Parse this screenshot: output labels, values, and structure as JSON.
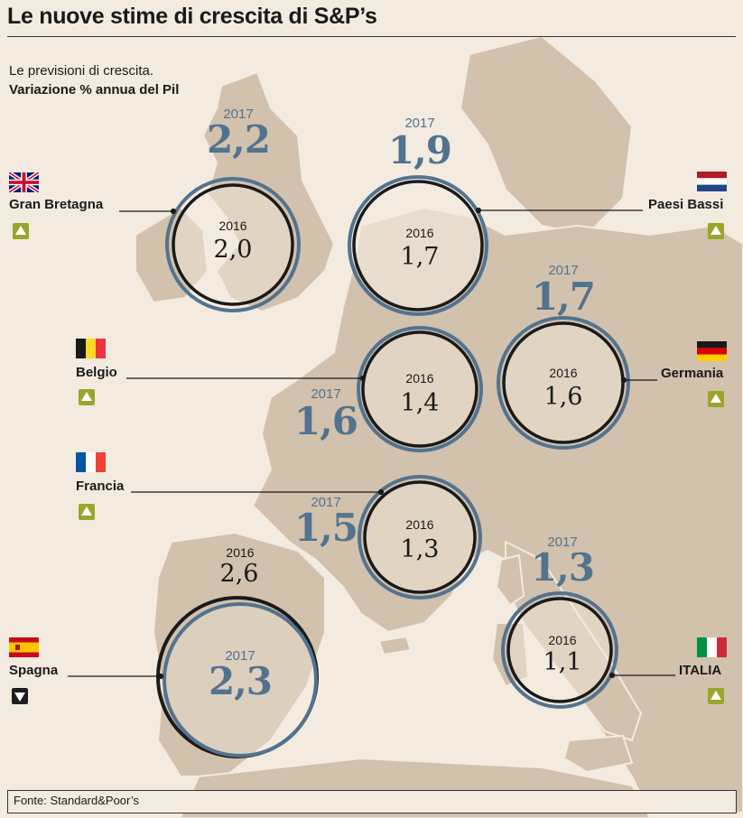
{
  "title": "Le nuove stime di crescita di S&P’s",
  "subtitle_line1": "Le previsioni di crescita.",
  "subtitle_line2": "Variazione % annua del Pil",
  "source": "Fonte: Standard&Poor’s",
  "year_new": "2017",
  "year_old": "2016",
  "colors": {
    "map_land": "#d2c1ac",
    "sea": "#f3ebe0",
    "forecast_2017": "#52738f",
    "forecast_2016": "#1a1a1a",
    "up_badge": "#9aa52c",
    "down_badge": "#1d1d1d"
  },
  "countries": [
    {
      "name": "Gran Bretagna",
      "v2016": "2,0",
      "v2017": "2,2",
      "trend": "up",
      "flag": "uk"
    },
    {
      "name": "Paesi Bassi",
      "v2016": "1,7",
      "v2017": "1,9",
      "trend": "up",
      "flag": "nl"
    },
    {
      "name": "Belgio",
      "v2016": "1,4",
      "v2017": "1,6",
      "trend": "up",
      "flag": "be"
    },
    {
      "name": "Germania",
      "v2016": "1,6",
      "v2017": "1,7",
      "trend": "up",
      "flag": "de"
    },
    {
      "name": "Francia",
      "v2016": "1,3",
      "v2017": "1,5",
      "trend": "up",
      "flag": "fr"
    },
    {
      "name": "Spagna",
      "v2016": "2,6",
      "v2017": "2,3",
      "trend": "down",
      "flag": "es"
    },
    {
      "name": "ITALIA",
      "v2016": "1,1",
      "v2017": "1,3",
      "trend": "up",
      "flag": "it"
    }
  ]
}
